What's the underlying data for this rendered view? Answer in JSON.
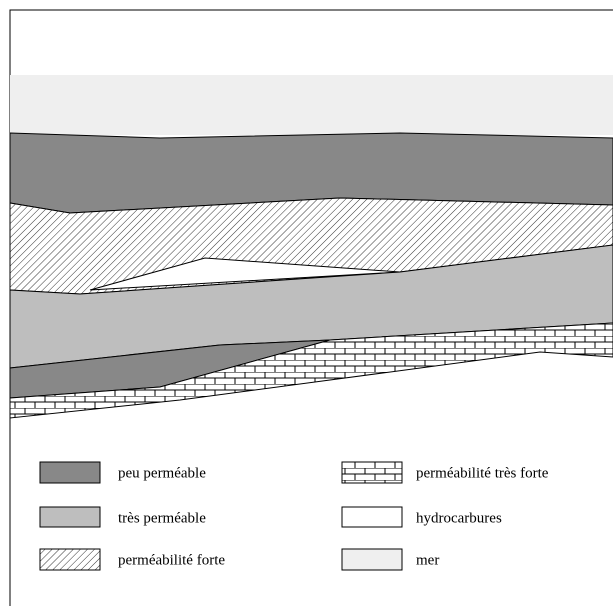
{
  "legend": [
    {
      "label": "peu perméable"
    },
    {
      "label": "très perméable"
    },
    {
      "label": "perméabilité forte"
    },
    {
      "label": "perméabilité très forte"
    },
    {
      "label": "hydrocarbures"
    },
    {
      "label": "mer"
    }
  ]
}
